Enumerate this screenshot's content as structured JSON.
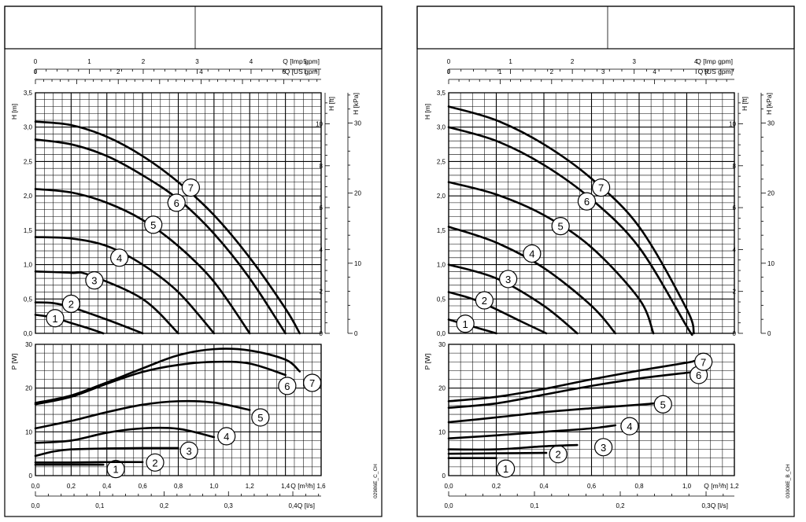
{
  "chart_data": [
    {
      "type": "line",
      "id": "left",
      "code": "02986E_C_CH",
      "top_axes": {
        "imp_gpm": {
          "label": "Q [Imp gpm]",
          "ticks": [
            0,
            1,
            2,
            3,
            4,
            5
          ],
          "max": 5.3
        },
        "us_gpm": {
          "label": "Q [US gpm]",
          "ticks": [
            0,
            2,
            4,
            6
          ],
          "max": 6.9
        }
      },
      "bottom_axes": {
        "m3h": {
          "label": "Q [m³/h]",
          "ticks": [
            "0,0",
            "0,2",
            "0,4",
            "0,6",
            "0,8",
            "1,0",
            "1,2",
            "1,4",
            "1,6"
          ],
          "max": 1.6
        },
        "ls": {
          "label": "Q [l/s]",
          "ticks": [
            "0,0",
            "0,1",
            "0,2",
            "0,3",
            "0,4"
          ],
          "max": 0.444
        }
      },
      "head": {
        "ylabel": "H [m]",
        "ylim": [
          0,
          3.5
        ],
        "yticks": [
          "0,0",
          "0,5",
          "1,0",
          "1,5",
          "2,0",
          "2,5",
          "3,0",
          "3,5"
        ],
        "ft_label": "H [ft]",
        "ft_ticks": [
          0,
          2,
          4,
          6,
          8,
          10
        ],
        "kpa_label": "H [kPa]",
        "kpa_ticks": [
          0,
          10,
          20,
          30
        ],
        "series": [
          {
            "name": "1",
            "x": [
              0.0,
              0.1,
              0.2,
              0.3,
              0.38
            ],
            "y": [
              0.27,
              0.23,
              0.15,
              0.07,
              0.0
            ],
            "label_at": [
              0.11,
              0.22
            ]
          },
          {
            "name": "2",
            "x": [
              0.0,
              0.1,
              0.2,
              0.4,
              0.6
            ],
            "y": [
              0.45,
              0.44,
              0.38,
              0.2,
              0.0
            ],
            "label_at": [
              0.2,
              0.43
            ]
          },
          {
            "name": "3",
            "x": [
              0.0,
              0.2,
              0.3,
              0.6,
              0.8
            ],
            "y": [
              0.9,
              0.88,
              0.85,
              0.5,
              0.0
            ],
            "label_at": [
              0.33,
              0.77
            ]
          },
          {
            "name": "4",
            "x": [
              0.0,
              0.2,
              0.4,
              0.6,
              0.8,
              1.0
            ],
            "y": [
              1.4,
              1.38,
              1.27,
              1.0,
              0.6,
              0.0
            ],
            "label_at": [
              0.47,
              1.1
            ]
          },
          {
            "name": "5",
            "x": [
              0.0,
              0.2,
              0.4,
              0.6,
              0.8,
              1.0,
              1.2
            ],
            "y": [
              2.1,
              2.05,
              1.9,
              1.65,
              1.27,
              0.75,
              0.0
            ],
            "label_at": [
              0.66,
              1.58
            ]
          },
          {
            "name": "6",
            "x": [
              0.0,
              0.2,
              0.4,
              0.6,
              0.8,
              1.0,
              1.2,
              1.4
            ],
            "y": [
              2.82,
              2.75,
              2.58,
              2.3,
              1.95,
              1.45,
              0.8,
              0.0
            ],
            "label_at": [
              0.79,
              1.9
            ]
          },
          {
            "name": "7",
            "x": [
              0.0,
              0.2,
              0.4,
              0.6,
              0.8,
              1.0,
              1.2,
              1.4,
              1.48
            ],
            "y": [
              3.08,
              3.03,
              2.86,
              2.58,
              2.2,
              1.72,
              1.1,
              0.36,
              0.0
            ],
            "label_at": [
              0.87,
              2.12
            ]
          }
        ]
      },
      "power": {
        "ylabel": "P [W]",
        "ylim": [
          0,
          30
        ],
        "yticks": [
          0,
          10,
          20,
          30
        ],
        "series": [
          {
            "name": "1",
            "x": [
              0.0,
              0.1,
              0.2,
              0.3,
              0.38
            ],
            "y": [
              2.5,
              2.5,
              2.5,
              2.5,
              2.5
            ],
            "label_at": [
              0.45,
              1.5
            ]
          },
          {
            "name": "2",
            "x": [
              0.0,
              0.1,
              0.2,
              0.4,
              0.6
            ],
            "y": [
              3.0,
              3.0,
              3.0,
              3.1,
              3.1
            ],
            "label_at": [
              0.67,
              3.0
            ]
          },
          {
            "name": "3",
            "x": [
              0.0,
              0.1,
              0.2,
              0.4,
              0.6,
              0.8
            ],
            "y": [
              4.5,
              5.5,
              6.0,
              6.2,
              6.3,
              6.3
            ],
            "label_at": [
              0.86,
              5.7
            ]
          },
          {
            "name": "4",
            "x": [
              0.0,
              0.2,
              0.4,
              0.6,
              0.8,
              1.0
            ],
            "y": [
              7.5,
              8.0,
              9.8,
              10.8,
              10.7,
              8.8
            ],
            "label_at": [
              1.07,
              9.0
            ]
          },
          {
            "name": "5",
            "x": [
              0.0,
              0.2,
              0.4,
              0.6,
              0.8,
              1.0,
              1.2
            ],
            "y": [
              10.8,
              12.5,
              14.5,
              16.2,
              17.0,
              16.7,
              15.0
            ],
            "label_at": [
              1.26,
              13.3
            ]
          },
          {
            "name": "6",
            "x": [
              0.0,
              0.2,
              0.4,
              0.6,
              0.8,
              1.0,
              1.2,
              1.4
            ],
            "y": [
              16.3,
              18.0,
              21.0,
              23.7,
              25.3,
              26.0,
              25.6,
              23.0
            ],
            "label_at": [
              1.41,
              20.5
            ]
          },
          {
            "name": "7",
            "x": [
              0.0,
              0.2,
              0.4,
              0.6,
              0.8,
              1.0,
              1.2,
              1.4,
              1.48
            ],
            "y": [
              16.6,
              18.3,
              21.3,
              24.5,
              27.5,
              28.9,
              28.6,
              26.5,
              23.8
            ],
            "label_at": [
              1.55,
              21.2
            ]
          }
        ]
      }
    },
    {
      "type": "line",
      "id": "right",
      "code": "03008E_B_CH",
      "top_axes": {
        "imp_gpm": {
          "label": "Q [Imp gpm]",
          "ticks": [
            0,
            1,
            2,
            3,
            4
          ],
          "max": 4.62
        },
        "us_gpm": {
          "label": "Q [US gpm]",
          "ticks": [
            0,
            1,
            2,
            3,
            4,
            5
          ],
          "max": 5.55
        }
      },
      "bottom_axes": {
        "m3h": {
          "label": "Q [m³/h]",
          "ticks": [
            "0,0",
            "0,2",
            "0,4",
            "0,6",
            "0,8",
            "1,0",
            "1,2"
          ],
          "max": 1.2
        },
        "ls": {
          "label": "Q [l/s]",
          "ticks": [
            "0,0",
            "0,1",
            "0,2",
            "0,3"
          ],
          "max": 0.333
        }
      },
      "head": {
        "ylabel": "H [m]",
        "ylim": [
          0,
          3.5
        ],
        "yticks": [
          "0,0",
          "0,5",
          "1,0",
          "1,5",
          "2,0",
          "2,5",
          "3,0",
          "3,5"
        ],
        "ft_label": "H [ft]",
        "ft_ticks": [
          0,
          2,
          4,
          6,
          8,
          10
        ],
        "kpa_label": "H [kPa]",
        "kpa_ticks": [
          0,
          10,
          20,
          30
        ],
        "series": [
          {
            "name": "1",
            "x": [
              0.0,
              0.1,
              0.2
            ],
            "y": [
              0.2,
              0.1,
              0.0
            ],
            "label_at": [
              0.07,
              0.14
            ]
          },
          {
            "name": "2",
            "x": [
              0.0,
              0.1,
              0.2,
              0.3,
              0.41
            ],
            "y": [
              0.6,
              0.5,
              0.35,
              0.18,
              0.0
            ],
            "label_at": [
              0.15,
              0.48
            ]
          },
          {
            "name": "3",
            "x": [
              0.0,
              0.2,
              0.4,
              0.54
            ],
            "y": [
              1.0,
              0.8,
              0.4,
              0.0
            ],
            "label_at": [
              0.25,
              0.79
            ]
          },
          {
            "name": "4",
            "x": [
              0.0,
              0.2,
              0.4,
              0.6,
              0.7
            ],
            "y": [
              1.55,
              1.32,
              0.95,
              0.4,
              0.0
            ],
            "label_at": [
              0.35,
              1.16
            ]
          },
          {
            "name": "5",
            "x": [
              0.0,
              0.2,
              0.4,
              0.6,
              0.8,
              0.86
            ],
            "y": [
              2.2,
              2.02,
              1.72,
              1.25,
              0.5,
              0.0
            ],
            "label_at": [
              0.47,
              1.56
            ]
          },
          {
            "name": "6",
            "x": [
              0.0,
              0.2,
              0.4,
              0.6,
              0.8,
              1.0,
              1.02
            ],
            "y": [
              3.0,
              2.8,
              2.45,
              1.95,
              1.25,
              0.1,
              0.0
            ],
            "label_at": [
              0.58,
              1.92
            ]
          },
          {
            "name": "7",
            "x": [
              0.0,
              0.2,
              0.4,
              0.6,
              0.8,
              1.0,
              1.03
            ],
            "y": [
              3.3,
              3.1,
              2.75,
              2.25,
              1.55,
              0.35,
              0.0
            ],
            "label_at": [
              0.64,
              2.12
            ]
          }
        ]
      },
      "power": {
        "ylabel": "P [W]",
        "ylim": [
          0,
          30
        ],
        "yticks": [
          0,
          10,
          20,
          30
        ],
        "series": [
          {
            "name": "1",
            "x": [
              0.0,
              0.1,
              0.2
            ],
            "y": [
              4.0,
              4.0,
              4.0
            ],
            "label_at": [
              0.24,
              1.6
            ]
          },
          {
            "name": "2",
            "x": [
              0.0,
              0.2,
              0.41
            ],
            "y": [
              5.0,
              5.1,
              5.2
            ],
            "label_at": [
              0.46,
              4.9
            ]
          },
          {
            "name": "3",
            "x": [
              0.0,
              0.2,
              0.4,
              0.54
            ],
            "y": [
              6.0,
              6.0,
              6.7,
              7.0
            ],
            "label_at": [
              0.65,
              6.5
            ]
          },
          {
            "name": "4",
            "x": [
              0.0,
              0.2,
              0.4,
              0.6,
              0.7
            ],
            "y": [
              8.5,
              9.2,
              10.0,
              10.8,
              11.5
            ],
            "label_at": [
              0.76,
              11.3
            ]
          },
          {
            "name": "5",
            "x": [
              0.0,
              0.2,
              0.4,
              0.6,
              0.8,
              0.86
            ],
            "y": [
              12.2,
              13.3,
              14.5,
              15.4,
              16.2,
              16.5
            ],
            "label_at": [
              0.9,
              16.3
            ]
          },
          {
            "name": "6",
            "x": [
              0.0,
              0.2,
              0.4,
              0.6,
              0.8,
              1.0,
              1.02
            ],
            "y": [
              15.5,
              16.5,
              18.5,
              20.5,
              22.2,
              23.5,
              23.6
            ],
            "label_at": [
              1.05,
              23.0
            ]
          },
          {
            "name": "7",
            "x": [
              0.0,
              0.2,
              0.4,
              0.6,
              0.8,
              1.0,
              1.03
            ],
            "y": [
              17.0,
              18.0,
              19.8,
              22.0,
              24.0,
              25.8,
              26.2
            ],
            "label_at": [
              1.07,
              26.0
            ]
          }
        ]
      }
    }
  ]
}
